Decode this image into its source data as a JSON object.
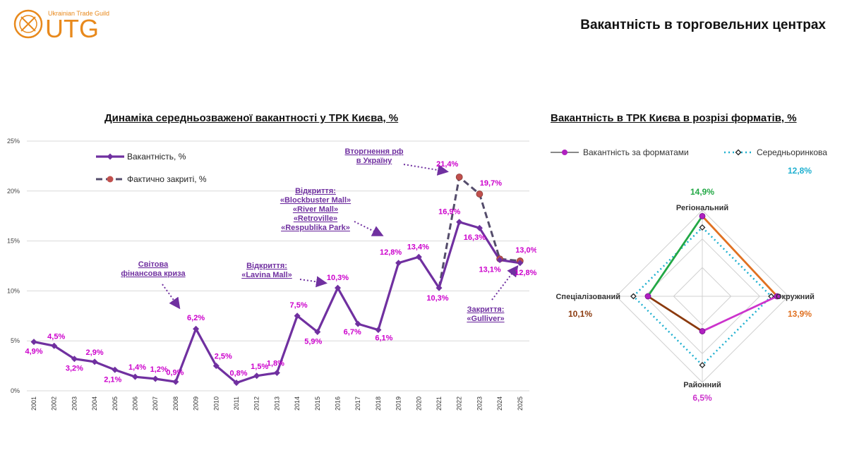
{
  "header": {
    "logo_text": "UTG",
    "logo_tagline": "Ukrainian Trade Guild",
    "page_title": "Вакантність в торговельних центрах"
  },
  "colors": {
    "vacancy_line": "#7030A0",
    "closed_line": "#544C6B",
    "closed_marker": "#C0504D",
    "label": "#CC00CC",
    "regional": "#22A845",
    "district": "#CC33CC",
    "specialized": "#8B3A0E",
    "county": "#E07020",
    "average": "#1FB0D0",
    "logo": "#E8891C"
  },
  "chart_data": [
    {
      "type": "line",
      "title": "Динаміка середньозваженої вакантності у ТРК Києва, %",
      "categories": [
        "2001",
        "2002",
        "2003",
        "2004",
        "2005",
        "2006",
        "2007",
        "2008",
        "2009",
        "2010",
        "2011",
        "2012",
        "2013",
        "2014",
        "2015",
        "2016",
        "2017",
        "2018",
        "2019",
        "2020",
        "2021",
        "2022",
        "2023",
        "2024",
        "2025"
      ],
      "ylim": [
        0,
        25
      ],
      "yticks": [
        "0%",
        "5%",
        "10%",
        "15%",
        "20%",
        "25%"
      ],
      "legend_position": "top-left",
      "series": [
        {
          "name": "Вакантність, %",
          "values": [
            4.9,
            4.5,
            3.2,
            2.9,
            2.1,
            1.4,
            1.2,
            0.9,
            6.2,
            2.5,
            0.8,
            1.5,
            1.8,
            7.5,
            5.9,
            10.3,
            6.7,
            6.1,
            12.8,
            13.4,
            10.3,
            16.9,
            16.3,
            13.1,
            12.8
          ],
          "labels": [
            "4,9%",
            "4,5%",
            "3,2%",
            "2,9%",
            "2,1%",
            "1,4%",
            "1,2%",
            "0,9%",
            "6,2%",
            "2,5%",
            "0,8%",
            "1,5%",
            "1,8%",
            "7,5%",
            "5,9%",
            "10,3%",
            "6,7%",
            "6,1%",
            "12,8%",
            "13,4%",
            "10,3%",
            "16,9%",
            "16,3%",
            "13,1%",
            "12,8%"
          ]
        },
        {
          "name": "Фактично закриті, %",
          "x": [
            "2021",
            "2022",
            "2023",
            "2024",
            "2025"
          ],
          "values": [
            10.3,
            21.4,
            19.7,
            13.2,
            13.0
          ],
          "labels": [
            "",
            "21,4%",
            "19,7%",
            "",
            "13,0%"
          ]
        }
      ],
      "annotations": [
        {
          "lines": [
            "Світова",
            "фінансова криза"
          ]
        },
        {
          "lines": [
            "Відкриття:",
            "«Lavina Mall»"
          ]
        },
        {
          "lines": [
            "Відкриття:",
            "«Blockbuster Mall»",
            "«River Mall»",
            "«Retroville»",
            "«Respublika Park»"
          ]
        },
        {
          "lines": [
            "Вторгнення рф",
            "в Україну"
          ]
        },
        {
          "lines": [
            "Закриття:",
            "«Gulliver»"
          ]
        }
      ]
    },
    {
      "type": "radar",
      "title": "Вакантність в ТРК Києва в розрізі форматів, %",
      "axes": [
        "Регіональний",
        "Окружний",
        "Районний",
        "Спеціалізований"
      ],
      "rmax": 16,
      "legend_position": "top",
      "series": [
        {
          "name": "Вакантність за форматами",
          "values": [
            14.9,
            13.9,
            6.5,
            10.1
          ],
          "labels": [
            "14,9%",
            "13,9%",
            "6,5%",
            "10,1%"
          ]
        },
        {
          "name": "Середньоринкова",
          "values": [
            12.8,
            12.8,
            12.8,
            12.8
          ],
          "label": "12,8%"
        }
      ]
    }
  ]
}
